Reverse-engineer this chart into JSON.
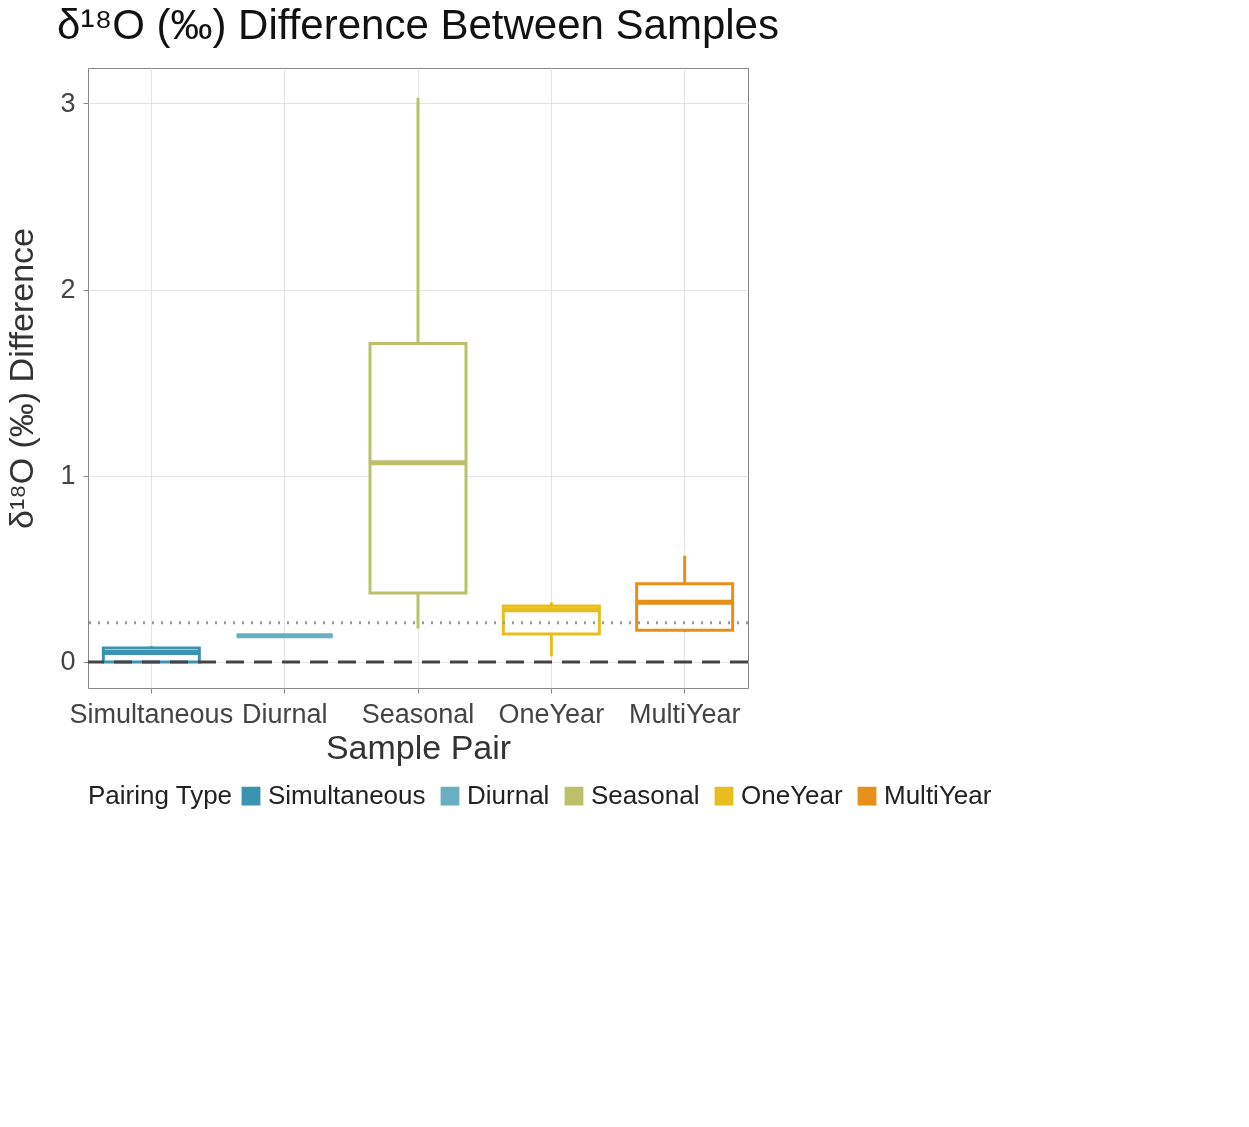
{
  "chart_data": {
    "type": "box",
    "title": "δ¹⁸O (‰) Difference Between Samples",
    "xlabel": "Sample Pair",
    "ylabel": "δ¹⁸O (‰) Difference",
    "legend_title": "Pairing Type",
    "categories": [
      "Simultaneous",
      "Diurnal",
      "Seasonal",
      "OneYear",
      "MultiYear"
    ],
    "series": [
      {
        "name": "Simultaneous",
        "color": "#3a93b0",
        "boxes": [
          {
            "low": 0.0,
            "q1": 0.0,
            "median": 0.05,
            "q3": 0.075,
            "high": 0.085
          },
          null,
          null,
          null,
          null
        ]
      },
      {
        "name": "Diurnal",
        "color": "#6aafc0",
        "boxes": [
          null,
          {
            "low": 0.14,
            "q1": 0.14,
            "median": 0.14,
            "q3": 0.14,
            "high": 0.14
          },
          null,
          null,
          null
        ]
      },
      {
        "name": "Seasonal",
        "color": "#bcc06a",
        "boxes": [
          null,
          null,
          {
            "low": 0.18,
            "q1": 0.37,
            "median": 1.07,
            "q3": 1.71,
            "high": 3.03
          },
          null,
          null
        ]
      },
      {
        "name": "OneYear",
        "color": "#e8bd1e",
        "boxes": [
          null,
          null,
          null,
          {
            "low": 0.03,
            "q1": 0.15,
            "median": 0.28,
            "q3": 0.3,
            "high": 0.32
          },
          null
        ]
      },
      {
        "name": "MultiYear",
        "color": "#e6901a",
        "boxes": [
          null,
          null,
          null,
          null,
          {
            "low": 0.16,
            "q1": 0.17,
            "median": 0.32,
            "q3": 0.42,
            "high": 0.57
          }
        ]
      }
    ],
    "ref_lines": [
      {
        "axis": "y",
        "value": 0.21,
        "color": "#999999",
        "line_style": "dotted"
      },
      {
        "axis": "y",
        "value": 0.0,
        "color": "#444444",
        "line_style": "dashed"
      }
    ],
    "ylim": [
      -0.14,
      3.19
    ],
    "yticks": [
      0,
      1,
      2,
      3
    ],
    "grid": true,
    "legend": "bottom"
  }
}
